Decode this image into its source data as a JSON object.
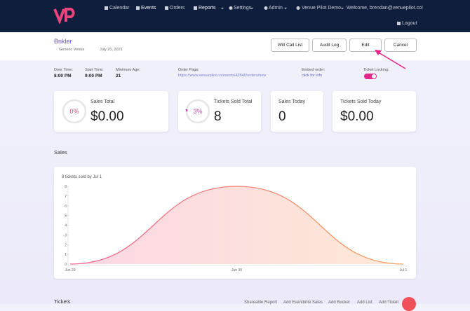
{
  "nav": {
    "items": [
      "Calendar",
      "Events",
      "Orders",
      "Reports",
      "Settings",
      "Admin",
      "Venue Pilot Demo"
    ],
    "welcome": "Welcome, brendan@venuepilot.co!",
    "logout": "Logout"
  },
  "event": {
    "title": "Bnkler",
    "venue": "Generic Venue",
    "date": "July 20, 2021",
    "buttons": [
      "Will Call List",
      "Audit Log",
      "Edit",
      "Cancel"
    ]
  },
  "info": [
    {
      "label": "Door Time:",
      "value": "8:00 PM"
    },
    {
      "label": "Start Time:",
      "value": "9:00 PM"
    },
    {
      "label": "Minimum Age:",
      "value": "21"
    },
    {
      "label": "Order Page:",
      "value": "https://www.venuepilot.co/events/42846/orders/new"
    },
    {
      "label": "Embed order:",
      "value": "click for info"
    },
    {
      "label": "Ticket Locking:",
      "value": true
    }
  ],
  "stats": [
    {
      "percent": {
        "value": 0,
        "label": "0%"
      },
      "label": "Sales Total",
      "value": "$0.00"
    },
    {
      "percent": {
        "value": 3,
        "label": "3%"
      },
      "label": "Tickets Sold Total",
      "value": "8"
    },
    {
      "label": "Sales Today",
      "value": "0"
    },
    {
      "label": "Tickets Sold Today",
      "value": "$0.00"
    }
  ],
  "sales_heading": "Sales",
  "chart_data": {
    "type": "area",
    "subtitle": "8 tickets sold by Jul 1",
    "categories": [
      "Jun 29",
      "Jun 30",
      "Jul 1"
    ],
    "values": [
      0,
      8,
      0
    ],
    "ylim": [
      0,
      8
    ],
    "yticks": [
      0,
      1,
      2,
      3,
      4,
      5,
      6,
      7,
      8
    ],
    "colors": [
      "#f06292",
      "#f7a35c"
    ]
  },
  "tickets": {
    "heading": "Tickets",
    "links": [
      "Shareable Report",
      "Add Eventbrite Sales",
      "Add Bucket",
      "Add List",
      "Add Ticket"
    ]
  }
}
